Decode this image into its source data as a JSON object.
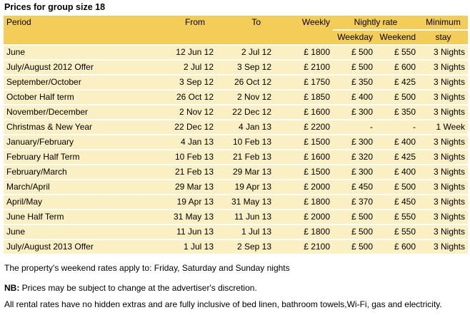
{
  "caption": "Prices for group size 18",
  "headers": {
    "period": "Period",
    "from": "From",
    "to": "To",
    "weekly": "Weekly",
    "nightly_rate": "Nightly rate",
    "weekday": "Weekday",
    "weekend": "Weekend",
    "minimum": "Minimum",
    "stay": "stay"
  },
  "rows": [
    {
      "period": "June",
      "from": "12 Jun 12",
      "to": "2 Jul 12",
      "weekly": "£ 1800",
      "weekday": "£ 500",
      "weekend": "£ 550",
      "min": "3 Nights"
    },
    {
      "period": "July/August 2012 Offer",
      "from": "2 Jul 12",
      "to": "3 Sep 12",
      "weekly": "£ 2100",
      "weekday": "£ 500",
      "weekend": "£ 600",
      "min": "3 Nights"
    },
    {
      "period": "September/October",
      "from": "3 Sep 12",
      "to": "26 Oct 12",
      "weekly": "£ 1750",
      "weekday": "£ 350",
      "weekend": "£ 425",
      "min": "3 Nights"
    },
    {
      "period": "October Half term",
      "from": "26 Oct 12",
      "to": "2 Nov 12",
      "weekly": "£ 1850",
      "weekday": "£ 400",
      "weekend": "£ 500",
      "min": "3 Nights"
    },
    {
      "period": "November/December",
      "from": "2 Nov 12",
      "to": "22 Dec 12",
      "weekly": "£ 1600",
      "weekday": "£ 300",
      "weekend": "£ 350",
      "min": "3 Nights"
    },
    {
      "period": "Christmas & New Year",
      "from": "22 Dec 12",
      "to": "4 Jan 13",
      "weekly": "£ 2200",
      "weekday": "-",
      "weekend": "-",
      "min": "1 Week"
    },
    {
      "period": "January/February",
      "from": "4 Jan 13",
      "to": "10 Feb 13",
      "weekly": "£ 1500",
      "weekday": "£ 300",
      "weekend": "£ 400",
      "min": "3 Nights"
    },
    {
      "period": "February Half Term",
      "from": "10 Feb 13",
      "to": "21 Feb 13",
      "weekly": "£ 1600",
      "weekday": "£ 320",
      "weekend": "£ 425",
      "min": "3 Nights"
    },
    {
      "period": "February/March",
      "from": "21 Feb 13",
      "to": "29 Mar 13",
      "weekly": "£ 1500",
      "weekday": "£ 300",
      "weekend": "£ 400",
      "min": "3 Nights"
    },
    {
      "period": "March/April",
      "from": "29 Mar 13",
      "to": "19 Apr 13",
      "weekly": "£ 2000",
      "weekday": "£ 450",
      "weekend": "£ 500",
      "min": "3 Nights"
    },
    {
      "period": "April/May",
      "from": "19 Apr 13",
      "to": "31 May 13",
      "weekly": "£ 1800",
      "weekday": "£ 370",
      "weekend": "£ 450",
      "min": "3 Nights"
    },
    {
      "period": "June Half Term",
      "from": "31 May 13",
      "to": "11 Jun 13",
      "weekly": "£ 2000",
      "weekday": "£ 500",
      "weekend": "£ 550",
      "min": "3 Nights"
    },
    {
      "period": "June",
      "from": "11 Jun 13",
      "to": "1 Jul 13",
      "weekly": "£ 1800",
      "weekday": "£ 500",
      "weekend": "£ 550",
      "min": "3 Nights"
    },
    {
      "period": "July/August 2013 Offer",
      "from": "1 Jul 13",
      "to": "2 Sep 13",
      "weekly": "£ 2100",
      "weekday": "£ 500",
      "weekend": "£ 600",
      "min": "3 Nights"
    }
  ],
  "notes": {
    "weekend_rates": "The property's weekend rates apply to: Friday, Saturday and Sunday nights",
    "nb_label": "NB:",
    "nb_text": " Prices may be subject to change at the advertiser's discretion.",
    "inclusive": "All rental rates have no hidden extras and are fully inclusive of bed linen, bathroom towels,Wi-Fi, gas and electricity."
  }
}
